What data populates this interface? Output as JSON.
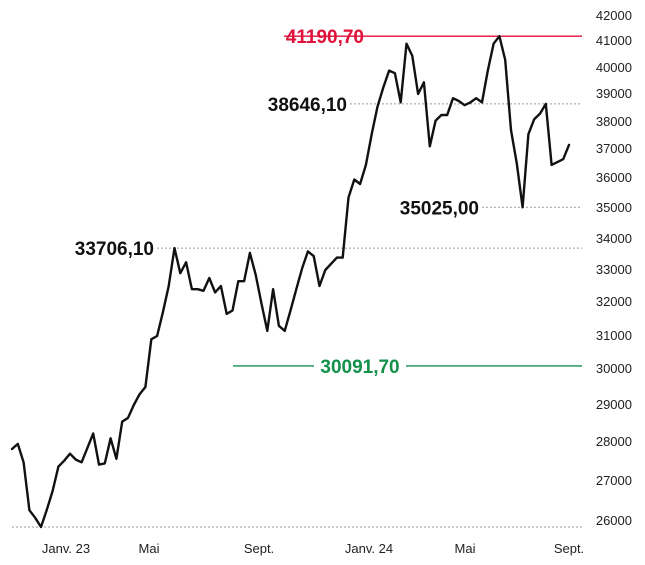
{
  "chart_data": {
    "type": "line",
    "title": "",
    "xlabel": "",
    "ylabel": "",
    "ylim": [
      25900,
      42000
    ],
    "y_ticks": [
      "42000",
      "41000",
      "40000",
      "39000",
      "38000",
      "37000",
      "36000",
      "35000",
      "34000",
      "33000",
      "32000",
      "31000",
      "30000",
      "29000",
      "28000",
      "27000",
      "26000"
    ],
    "x_ticks": [
      "Janv. 23",
      "Mai",
      "Sept.",
      "Janv. 24",
      "Mai",
      "Sept."
    ],
    "grid": false,
    "colors": {
      "line": "#111111",
      "high": "#e0113a",
      "low": "#12914a",
      "ref": "#9a9a9a",
      "text": "#222222"
    },
    "annotations": [
      {
        "label": "41190,70",
        "value": 41190.7,
        "style": "high"
      },
      {
        "label": "38646,10",
        "value": 38646.1,
        "style": "ref"
      },
      {
        "label": "35025,00",
        "value": 35025.0,
        "style": "ref"
      },
      {
        "label": "33706,10",
        "value": 33706.1,
        "style": "ref"
      },
      {
        "label": "30091,70",
        "value": 30091.7,
        "style": "low"
      },
      {
        "label": "",
        "value": 25900,
        "style": "ref"
      }
    ],
    "series": [
      {
        "values": [
          27820,
          27950,
          27480,
          26270,
          26080,
          25900,
          26280,
          26750,
          27370,
          27520,
          27700,
          27550,
          27480,
          27850,
          28230,
          27420,
          27450,
          28100,
          27570,
          28550,
          28650,
          29000,
          29300,
          29500,
          30900,
          31000,
          31700,
          32500,
          33706,
          32900,
          33250,
          32400,
          32400,
          32350,
          32750,
          32300,
          32500,
          31650,
          31750,
          32650,
          32650,
          33550,
          32850,
          31950,
          31150,
          32400,
          31300,
          31150,
          31750,
          32400,
          33050,
          33600,
          33450,
          32500,
          33000,
          33200,
          33400,
          33400,
          35350,
          35950,
          35800,
          36450,
          37550,
          38550,
          39250,
          39900,
          39800,
          38700,
          40900,
          40450,
          39000,
          39450,
          37100,
          38050,
          38250,
          38250,
          38850,
          38750,
          38600,
          38700,
          38850,
          38700,
          39900,
          40900,
          41190.7,
          40300,
          37700,
          36500,
          35025,
          37550,
          38100,
          38300,
          38646.1,
          36450,
          36550,
          36650,
          37150
        ]
      }
    ]
  }
}
